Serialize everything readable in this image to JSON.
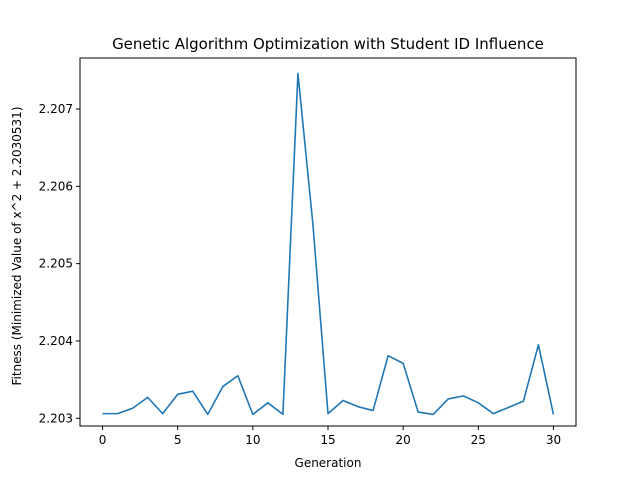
{
  "chart_data": {
    "type": "line",
    "title": "Genetic Algorithm Optimization with Student ID Influence",
    "xlabel": "Generation",
    "ylabel": "Fitness (Minimized Value of x^2 + 2.2030531)",
    "xlim": [
      -1.5,
      31.5
    ],
    "ylim": [
      2.2029,
      2.20766
    ],
    "xticks": [
      0,
      5,
      10,
      15,
      20,
      25,
      30
    ],
    "xtick_labels": [
      "0",
      "5",
      "10",
      "15",
      "20",
      "25",
      "30"
    ],
    "yticks": [
      2.203,
      2.204,
      2.205,
      2.206,
      2.207
    ],
    "ytick_labels": [
      "2.203",
      "2.204",
      "2.205",
      "2.206",
      "2.207"
    ],
    "grid": false,
    "line_color": "#1f77b4",
    "series": [
      {
        "x": [
          0,
          1,
          2,
          3,
          4,
          5,
          6,
          7,
          8,
          9,
          10,
          11,
          12,
          13,
          14,
          15,
          16,
          17,
          18,
          19,
          20,
          21,
          22,
          23,
          24,
          25,
          26,
          27,
          28,
          29,
          30
        ],
        "values": [
          2.20306,
          2.20306,
          2.20313,
          2.20327,
          2.20306,
          2.20331,
          2.20335,
          2.20305,
          2.20341,
          2.20355,
          2.20305,
          2.2032,
          2.20305,
          2.20746,
          2.2055,
          2.20306,
          2.20323,
          2.20315,
          2.2031,
          2.20381,
          2.20371,
          2.20308,
          2.20305,
          2.20325,
          2.20329,
          2.2032,
          2.20306,
          2.20314,
          2.20322,
          2.20395,
          2.20305
        ]
      }
    ]
  }
}
